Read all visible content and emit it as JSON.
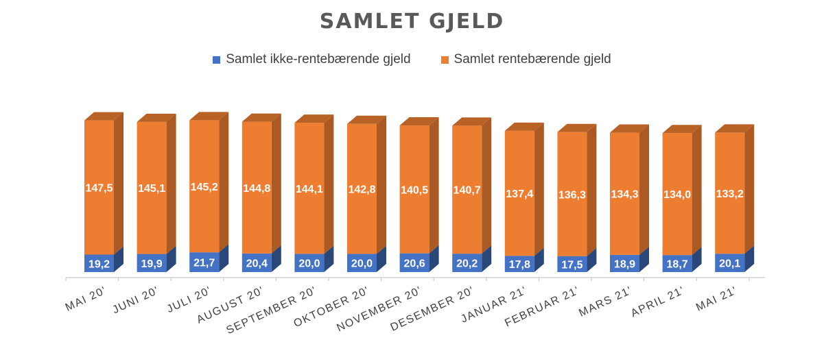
{
  "colors": {
    "blue": "#4472c4",
    "orange": "#ed7d31",
    "title": "#595959",
    "axis": "#bfbfbf",
    "label": "#ffffff"
  },
  "legend": {
    "blue_label": "Samlet ikke-rentebærende gjeld",
    "orange_label": "Samlet rentebærende gjeld"
  },
  "chart_data": {
    "type": "bar",
    "stacked": true,
    "three_d": true,
    "title": "SAMLET GJELD",
    "xlabel": "",
    "ylabel": "",
    "legend_position": "top",
    "grid": false,
    "categories": [
      "MAI 20'",
      "JUNI 20'",
      "JULI 20'",
      "AUGUST 20'",
      "SEPTEMBER 20'",
      "OKTOBER 20'",
      "NOVEMBER 20'",
      "DESEMBER 20'",
      "JANUAR 21'",
      "FEBRUAR 21'",
      "MARS 21'",
      "APRIL 21'",
      "MAI 21'"
    ],
    "series": [
      {
        "name": "Samlet ikke-rentebærende gjeld",
        "values": [
          19.2,
          19.9,
          21.7,
          20.4,
          20.0,
          20.0,
          20.6,
          20.2,
          17.8,
          17.5,
          18.9,
          18.7,
          20.1
        ],
        "labels": [
          "19,2",
          "19,9",
          "21,7",
          "20,4",
          "20,0",
          "20,0",
          "20,6",
          "20,2",
          "17,8",
          "17,5",
          "18,9",
          "18,7",
          "20,1"
        ]
      },
      {
        "name": "Samlet rentebærende gjeld",
        "values": [
          147.5,
          145.1,
          145.2,
          144.8,
          144.1,
          142.8,
          140.5,
          140.7,
          137.4,
          136.3,
          134.3,
          134.0,
          133.2
        ],
        "labels": [
          "147,5",
          "145,1",
          "145,2",
          "144,8",
          "144,1",
          "142,8",
          "140,5",
          "140,7",
          "137,4",
          "136,3",
          "134,3",
          "134,0",
          "133,2"
        ]
      }
    ]
  }
}
